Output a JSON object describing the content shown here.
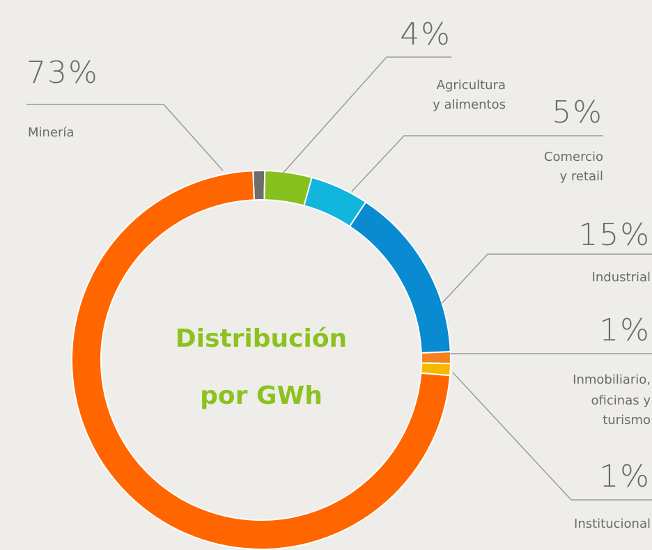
{
  "chart_data": {
    "type": "donut",
    "title_lines": [
      "Distribución",
      "por GWh"
    ],
    "categories": [
      null,
      [
        "Agricultura",
        "y alimentos"
      ],
      [
        "Comercio",
        "y retail"
      ],
      [
        "Industrial"
      ],
      [
        "Inmobiliario,",
        "oficinas y",
        "turismo"
      ],
      [
        "Institucional"
      ],
      [
        "Minería"
      ]
    ],
    "values": [
      1,
      4,
      5,
      15,
      1,
      1,
      73
    ],
    "value_labels": [
      null,
      "4%",
      "5%",
      "15%",
      "1%",
      "1%",
      "73%"
    ],
    "colors": [
      "#6d6d6d",
      "#86c11f",
      "#12b5dc",
      "#0a8ad0",
      "#f58220",
      "#f7b800",
      "#ff6600"
    ]
  }
}
